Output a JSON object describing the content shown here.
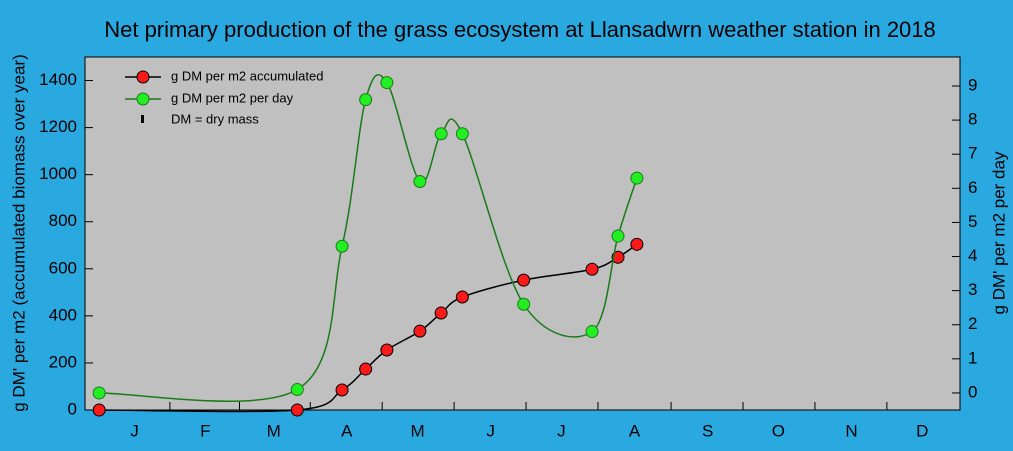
{
  "chart_data": {
    "type": "line",
    "title": "Net primary production of the grass ecosystem at Llansadwrn weather station in 2018",
    "y_label": "g DM' per m2 (accumulated biomass over year)",
    "y2_label": "g DM' per m2 per day",
    "note": "DM = dry mass",
    "x": [
      0,
      84,
      103,
      113,
      122,
      136,
      145,
      154,
      180,
      209,
      220,
      228
    ],
    "xlim": [
      -6,
      365
    ],
    "xticks": [
      {
        "value": 15,
        "label": "J"
      },
      {
        "value": 45,
        "label": "F"
      },
      {
        "value": 74,
        "label": "M"
      },
      {
        "value": 105,
        "label": "A"
      },
      {
        "value": 135,
        "label": "M"
      },
      {
        "value": 166,
        "label": "J"
      },
      {
        "value": 196,
        "label": "J"
      },
      {
        "value": 227,
        "label": "A"
      },
      {
        "value": 258,
        "label": "S"
      },
      {
        "value": 288,
        "label": "O"
      },
      {
        "value": 319,
        "label": "N"
      },
      {
        "value": 349,
        "label": "D"
      }
    ],
    "ylim": [
      0,
      1500
    ],
    "yticks": [
      0,
      200,
      400,
      600,
      800,
      1000,
      1200,
      1400
    ],
    "y2lim": [
      -0.5,
      9.85
    ],
    "y2ticks": [
      0,
      1,
      2,
      3,
      4,
      5,
      6,
      7,
      8,
      9
    ],
    "legend": "upper left",
    "series": [
      {
        "name": "g DM per m2 accumulated",
        "color": "#ff1a1a",
        "line_color": "#000000",
        "values": [
          0,
          0,
          85,
          174,
          255,
          335,
          412,
          480,
          552,
          598,
          649,
          704
        ]
      },
      {
        "name": "g DM per m2 per day",
        "color": "#22ee22",
        "line_color": "#1a7a1a",
        "axis": "y2",
        "values": [
          0,
          0.1,
          4.3,
          8.6,
          9.1,
          6.2,
          7.6,
          7.6,
          2.6,
          1.8,
          4.6,
          6.3
        ]
      }
    ]
  }
}
